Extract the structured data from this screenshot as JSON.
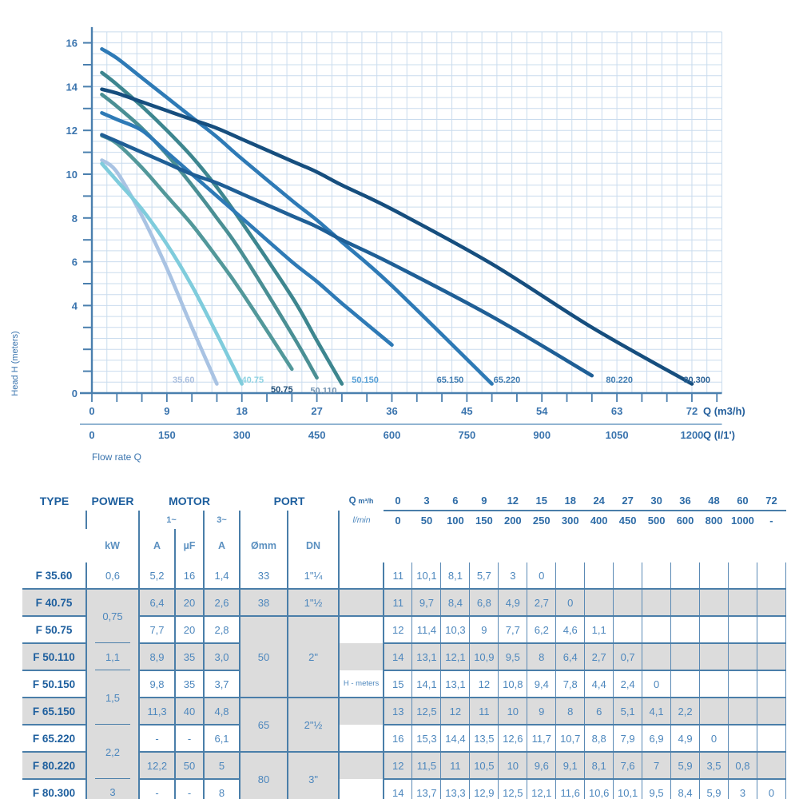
{
  "chart": {
    "ylabel": "Head H (meters)",
    "xlabel": "Flow rate Q",
    "x_unit_primary": "Q (m3/h)",
    "x_unit_secondary": "Q (l/1')",
    "x_ticks_m3h": [
      "0",
      "9",
      "18",
      "27",
      "36",
      "45",
      "54",
      "63",
      "72"
    ],
    "x_ticks_lmin": [
      "0",
      "150",
      "300",
      "450",
      "600",
      "750",
      "900",
      "1050",
      "1200"
    ],
    "y_ticks": [
      "0",
      "4",
      "6",
      "8",
      "10",
      "12",
      "14",
      "16"
    ]
  },
  "chart_data": {
    "type": "line",
    "xlabel": "Flow rate Q",
    "ylabel": "Head H (meters)",
    "x_m3h": [
      0,
      3,
      6,
      9,
      12,
      15,
      18,
      24,
      27,
      30,
      36,
      48,
      60,
      72
    ],
    "xlim": [
      0,
      75.6
    ],
    "ylim": [
      0,
      16.5
    ],
    "grid": true,
    "legend_position": "curve-end-labels",
    "series": [
      {
        "name": "35.60",
        "color": "#a9c3e3",
        "label_color": "#a9bede",
        "label_q": 11.0,
        "label_h": 0.62,
        "values": [
          11,
          10.1,
          8.1,
          5.7,
          3,
          0
        ]
      },
      {
        "name": "40.75",
        "color": "#7fccdc",
        "label_color": "#8ed2e2",
        "label_q": 19.3,
        "label_h": 0.62,
        "values": [
          11,
          9.7,
          8.4,
          6.8,
          4.9,
          2.7,
          0
        ]
      },
      {
        "name": "50.75",
        "color": "#52989a",
        "label_color": "#1f4e78",
        "label_q": 22.8,
        "label_h": 0.18,
        "values": [
          12,
          11.4,
          10.3,
          9,
          7.7,
          6.2,
          4.6,
          1.1
        ]
      },
      {
        "name": "50.110",
        "color": "#4a8f94",
        "label_color": "#7595b3",
        "label_q": 27.8,
        "label_h": 0.12,
        "values": [
          14,
          13.1,
          12.1,
          10.9,
          9.5,
          8,
          6.4,
          2.7,
          0.7
        ]
      },
      {
        "name": "50.150",
        "color": "#3d868f",
        "label_color": "#57a0d6",
        "label_q": 32.8,
        "label_h": 0.62,
        "values": [
          15,
          14.1,
          13.1,
          12,
          10.8,
          9.4,
          7.8,
          4.4,
          2.4,
          0
        ]
      },
      {
        "name": "65.150",
        "color": "#2e7ab6",
        "label_color": "#3d7ab0",
        "label_q": 43.0,
        "label_h": 0.62,
        "values": [
          13,
          12.5,
          12,
          11,
          10,
          9,
          8,
          6,
          5.1,
          4.1,
          2.2
        ]
      },
      {
        "name": "65.220",
        "color": "#2e7ab6",
        "label_color": "#3d7ab0",
        "label_q": 49.8,
        "label_h": 0.62,
        "values": [
          16,
          15.3,
          14.4,
          13.5,
          12.6,
          11.7,
          10.7,
          8.8,
          7.9,
          6.9,
          4.9,
          0
        ]
      },
      {
        "name": "80.220",
        "color": "#1f5f96",
        "label_color": "#3d7ab0",
        "label_q": 63.3,
        "label_h": 0.62,
        "values": [
          12,
          11.5,
          11,
          10.5,
          10,
          9.6,
          9.1,
          8.1,
          7.6,
          7,
          5.9,
          3.5,
          0.8
        ]
      },
      {
        "name": "80.300",
        "color": "#164e7e",
        "label_color": "#2a6195",
        "label_q": 72.6,
        "label_h": 0.62,
        "values": [
          14,
          13.7,
          13.3,
          12.9,
          12.5,
          12.1,
          11.6,
          10.6,
          10.1,
          9.5,
          8.4,
          5.9,
          3,
          0
        ]
      }
    ]
  },
  "table": {
    "headers": {
      "type": "TYPE",
      "power": "POWER",
      "motor": "MOTOR",
      "port": "PORT",
      "ph1": "1~",
      "ph3": "3~",
      "kw": "kW",
      "a1": "A",
      "uf": "µF",
      "a3": "A",
      "omm": "Ømm",
      "dn": "DN",
      "q": "Q",
      "q_unit": "m³/h",
      "lmin": "l/min",
      "q_m3h": [
        "0",
        "3",
        "6",
        "9",
        "12",
        "15",
        "18",
        "24",
        "27",
        "30",
        "36",
        "48",
        "60",
        "72"
      ],
      "q_lmin": [
        "0",
        "50",
        "100",
        "150",
        "200",
        "250",
        "300",
        "400",
        "450",
        "500",
        "600",
        "800",
        "1000",
        "-"
      ]
    },
    "rows": [
      {
        "type": "F 35.60",
        "shaded": false,
        "power": "0,6",
        "power_span": 1,
        "power_dash": false,
        "a1": "5,2",
        "uf": "16",
        "a3": "1,4",
        "omm": "33",
        "dn": "1\"¼",
        "port_span": 1,
        "note": "",
        "h": [
          "11",
          "10,1",
          "8,1",
          "5,7",
          "3",
          "0"
        ]
      },
      {
        "type": "F 40.75",
        "shaded": true,
        "power": "0,75",
        "power_span": 2,
        "power_dash": true,
        "a1": "6,4",
        "uf": "20",
        "a3": "2,6",
        "omm": "38",
        "dn": "1\"½",
        "port_span": 1,
        "note": "",
        "h": [
          "11",
          "9,7",
          "8,4",
          "6,8",
          "4,9",
          "2,7",
          "0"
        ]
      },
      {
        "type": "F 50.75",
        "shaded": false,
        "a1": "7,7",
        "uf": "20",
        "a3": "2,8",
        "omm": "50",
        "dn": "2\"",
        "port_span": 3,
        "note": "",
        "h": [
          "12",
          "11,4",
          "10,3",
          "9",
          "7,7",
          "6,2",
          "4,6",
          "1,1"
        ]
      },
      {
        "type": "F 50.110",
        "shaded": true,
        "power": "1,1",
        "power_span": 1,
        "power_dash": true,
        "a1": "8,9",
        "uf": "35",
        "a3": "3,0",
        "note": "",
        "h": [
          "14",
          "13,1",
          "12,1",
          "10,9",
          "9,5",
          "8",
          "6,4",
          "2,7",
          "0,7"
        ]
      },
      {
        "type": "F 50.150",
        "shaded": false,
        "power": "1,5",
        "power_span": 2,
        "power_dash": true,
        "a1": "9,8",
        "uf": "35",
        "a3": "3,7",
        "note": "H - meters",
        "h": [
          "15",
          "14,1",
          "13,1",
          "12",
          "10,8",
          "9,4",
          "7,8",
          "4,4",
          "2,4",
          "0"
        ]
      },
      {
        "type": "F 65.150",
        "shaded": true,
        "a1": "11,3",
        "uf": "40",
        "a3": "4,8",
        "omm": "65",
        "dn": "2\"½",
        "port_span": 2,
        "note": "",
        "h": [
          "13",
          "12,5",
          "12",
          "11",
          "10",
          "9",
          "8",
          "6",
          "5,1",
          "4,1",
          "2,2"
        ]
      },
      {
        "type": "F 65.220",
        "shaded": false,
        "power": "2,2",
        "power_span": 2,
        "power_dash": true,
        "a1": "-",
        "uf": "-",
        "a3": "6,1",
        "note": "",
        "h": [
          "16",
          "15,3",
          "14,4",
          "13,5",
          "12,6",
          "11,7",
          "10,7",
          "8,8",
          "7,9",
          "6,9",
          "4,9",
          "0"
        ]
      },
      {
        "type": "F 80.220",
        "shaded": true,
        "a1": "12,2",
        "uf": "50",
        "a3": "5",
        "omm": "80",
        "dn": "3\"",
        "port_span": 2,
        "note": "",
        "h": [
          "12",
          "11,5",
          "11",
          "10,5",
          "10",
          "9,6",
          "9,1",
          "8,1",
          "7,6",
          "7",
          "5,9",
          "3,5",
          "0,8"
        ]
      },
      {
        "type": "F 80.300",
        "shaded": false,
        "power": "3",
        "power_span": 1,
        "power_dash": false,
        "a1": "-",
        "uf": "-",
        "a3": "8",
        "note": "",
        "h": [
          "14",
          "13,7",
          "13,3",
          "12,9",
          "12,5",
          "12,1",
          "11,6",
          "10,6",
          "10,1",
          "9,5",
          "8,4",
          "5,9",
          "3",
          "0"
        ]
      }
    ]
  },
  "colors": {
    "border_blue": "#4a7ea9",
    "grid_blue": "#cadcee",
    "axis_blue": "#4a7fae",
    "shade_gray": "#dcdcdc",
    "text_blue": "#4d87bd",
    "text_dark_blue": "#1e5f9e"
  }
}
